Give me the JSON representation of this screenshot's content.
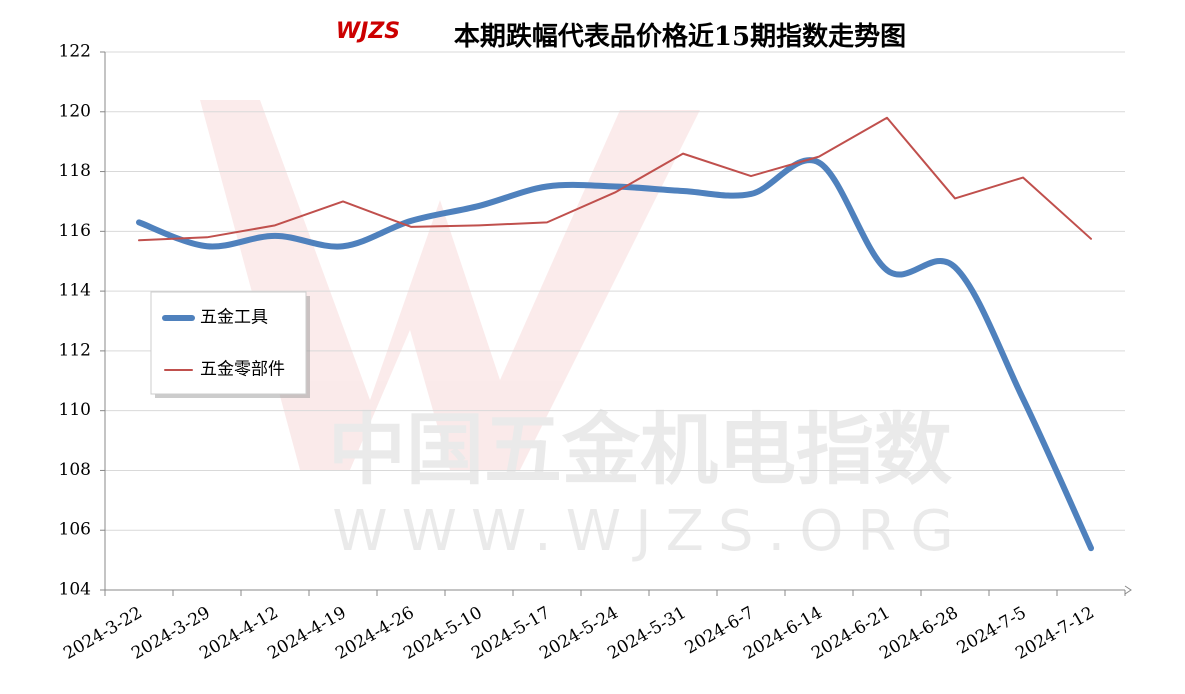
{
  "chart_data": {
    "type": "line",
    "title": "本期跌幅代表品价格近15期指数走势图",
    "logo": "WJZS",
    "watermark": [
      "中国五金机电指数",
      "WWW.WJZS.ORG"
    ],
    "categories": [
      "2024-3-22",
      "2024-3-29",
      "2024-4-12",
      "2024-4-19",
      "2024-4-26",
      "2024-5-10",
      "2024-5-17",
      "2024-5-24",
      "2024-5-31",
      "2024-6-7",
      "2024-6-14",
      "2024-6-21",
      "2024-6-28",
      "2024-7-5",
      "2024-7-12"
    ],
    "series": [
      {
        "name": "五金工具",
        "color": "#4f81bd",
        "width": 6,
        "smooth": true,
        "values": [
          116.3,
          115.5,
          115.85,
          115.5,
          116.35,
          116.85,
          117.5,
          117.5,
          117.35,
          117.25,
          118.3,
          114.7,
          114.8,
          110.4,
          105.4
        ]
      },
      {
        "name": "五金零部件",
        "color": "#c0504d",
        "width": 2,
        "smooth": false,
        "values": [
          115.7,
          115.8,
          116.2,
          117.0,
          116.15,
          116.2,
          116.3,
          117.3,
          118.6,
          117.85,
          118.5,
          119.8,
          117.1,
          117.8,
          115.75
        ]
      }
    ],
    "ylim": [
      104,
      122
    ],
    "yticks": [
      104,
      106,
      108,
      110,
      112,
      114,
      116,
      118,
      120,
      122
    ],
    "grid": true,
    "legend": "left"
  }
}
